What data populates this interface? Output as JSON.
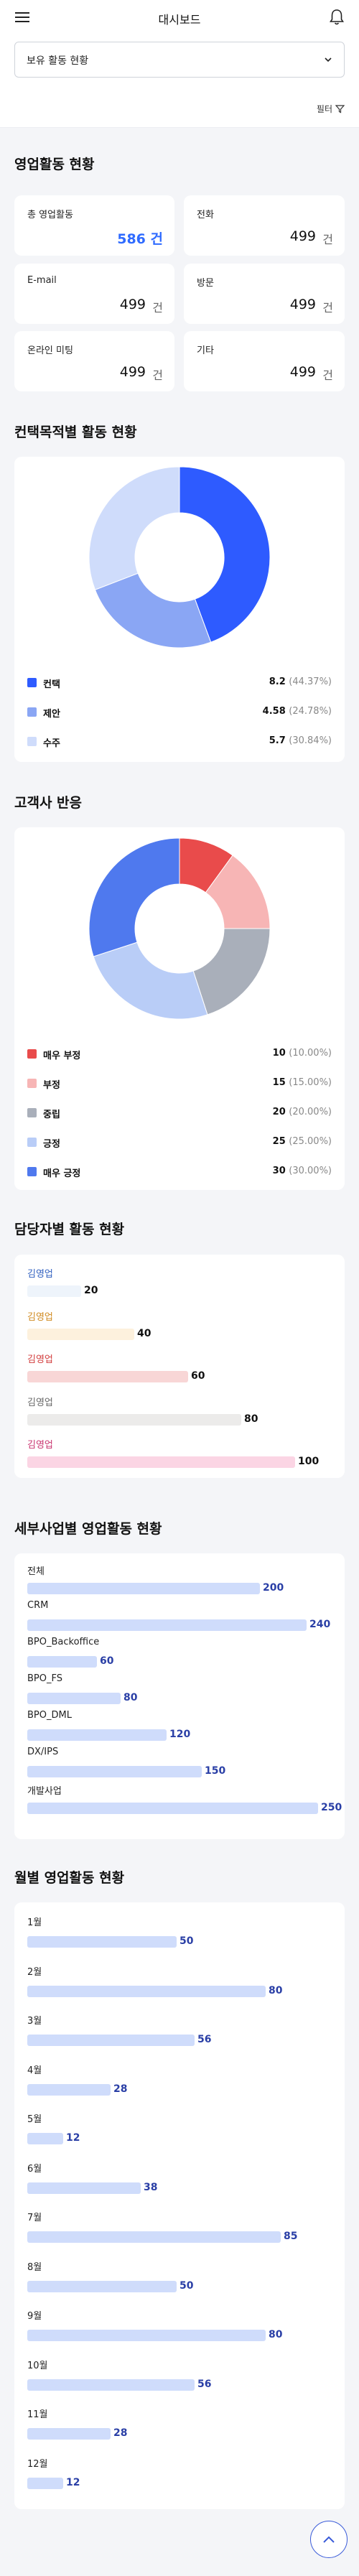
{
  "header": {
    "title": "대시보드",
    "menu_icon": "hamburger-menu-icon",
    "bell_icon": "bell-icon"
  },
  "select": {
    "value": "보유 활동 현황"
  },
  "filter": {
    "label": "필터",
    "icon": "filter-icon"
  },
  "sections": {
    "activity": "영업활동 현황",
    "purpose": "컨택목적별 활동 현황",
    "response": "고객사 반응",
    "manager": "담당자별 활동 현황",
    "business": "세부사업별 영업활동 현황",
    "monthly": "월별 영업활동 현황"
  },
  "kpis": [
    {
      "label": "총 영업활동",
      "value": "586 건",
      "highlight": true
    },
    {
      "label": "전화",
      "value": "499",
      "unit": "건"
    },
    {
      "label": "E-mail",
      "value": "499",
      "unit": "건"
    },
    {
      "label": "방문",
      "value": "499",
      "unit": "건"
    },
    {
      "label": "온라인 미팅",
      "value": "499",
      "unit": "건"
    },
    {
      "label": "기타",
      "value": "499",
      "unit": "건"
    }
  ],
  "purpose_legend": [
    {
      "name": "컨택",
      "value": "8.2",
      "pct": "(44.37%)"
    },
    {
      "name": "제안",
      "value": "4.58",
      "pct": "(24.78%)"
    },
    {
      "name": "수주",
      "value": "5.7",
      "pct": "(30.84%)"
    }
  ],
  "response_legend": [
    {
      "name": "매우 부정",
      "value": "10",
      "pct": "(10.00%)"
    },
    {
      "name": "부정",
      "value": "15",
      "pct": "(15.00%)"
    },
    {
      "name": "중립",
      "value": "20",
      "pct": "(20.00%)"
    },
    {
      "name": "긍정",
      "value": "25",
      "pct": "(25.00%)"
    },
    {
      "name": "매우 긍정",
      "value": "30",
      "pct": "(30.00%)"
    }
  ],
  "managers": [
    {
      "name": "김영업",
      "value": "20"
    },
    {
      "name": "김영업",
      "value": "40"
    },
    {
      "name": "김영업",
      "value": "60"
    },
    {
      "name": "김영업",
      "value": "80"
    },
    {
      "name": "김영업",
      "value": "100"
    }
  ],
  "business": [
    {
      "name": "전체",
      "value": "200"
    },
    {
      "name": "CRM",
      "value": "240"
    },
    {
      "name": "BPO_Backoffice",
      "value": "60"
    },
    {
      "name": "BPO_FS",
      "value": "80"
    },
    {
      "name": "BPO_DML",
      "value": "120"
    },
    {
      "name": "DX/IPS",
      "value": "150"
    },
    {
      "name": "개발사업",
      "value": "250"
    }
  ],
  "monthly": [
    {
      "name": "1월",
      "value": "50"
    },
    {
      "name": "2월",
      "value": "80"
    },
    {
      "name": "3월",
      "value": "56"
    },
    {
      "name": "4월",
      "value": "28"
    },
    {
      "name": "5월",
      "value": "12"
    },
    {
      "name": "6월",
      "value": "38"
    },
    {
      "name": "7월",
      "value": "85"
    },
    {
      "name": "8월",
      "value": "50"
    },
    {
      "name": "9월",
      "value": "80"
    },
    {
      "name": "10월",
      "value": "56"
    },
    {
      "name": "11월",
      "value": "28"
    },
    {
      "name": "12월",
      "value": "12"
    }
  ],
  "chart_data": [
    {
      "type": "pie",
      "title": "컨택목적별 활동 현황",
      "categories": [
        "컨택",
        "제안",
        "수주"
      ],
      "values": [
        8.2,
        4.58,
        5.7
      ],
      "colors": [
        "#2e5bff",
        "#8aa6f4",
        "#cfdcfb"
      ]
    },
    {
      "type": "pie",
      "title": "고객사 반응",
      "categories": [
        "매우 부정",
        "부정",
        "중립",
        "긍정",
        "매우 긍정"
      ],
      "values": [
        10,
        15,
        20,
        25,
        30
      ],
      "colors": [
        "#e94b4b",
        "#f7b5b5",
        "#a9afba",
        "#b9cdf7",
        "#4f79ee"
      ]
    },
    {
      "type": "bar",
      "title": "담당자별 활동 현황",
      "categories": [
        "김영업",
        "김영업",
        "김영업",
        "김영업",
        "김영업"
      ],
      "values": [
        20,
        40,
        60,
        80,
        100
      ],
      "colors": [
        "#eef4fb",
        "#fdf1dd",
        "#f8d6d6",
        "#ecebea",
        "#fbd5e4"
      ],
      "label_colors": [
        "#2f5fbf",
        "#d08a1f",
        "#d23c3c",
        "#666666",
        "#c8336e"
      ]
    },
    {
      "type": "bar",
      "title": "세부사업별 영업활동 현황",
      "categories": [
        "전체",
        "CRM",
        "BPO_Backoffice",
        "BPO_FS",
        "BPO_DML",
        "DX/IPS",
        "개발사업"
      ],
      "values": [
        200,
        240,
        60,
        80,
        120,
        150,
        250
      ]
    },
    {
      "type": "bar",
      "title": "월별 영업활동 현황",
      "categories": [
        "1월",
        "2월",
        "3월",
        "4월",
        "5월",
        "6월",
        "7월",
        "8월",
        "9월",
        "10월",
        "11월",
        "12월"
      ],
      "values": [
        50,
        80,
        56,
        28,
        12,
        38,
        85,
        50,
        80,
        56,
        28,
        12
      ]
    }
  ],
  "scroll_top_icon": "chevron-up-icon"
}
